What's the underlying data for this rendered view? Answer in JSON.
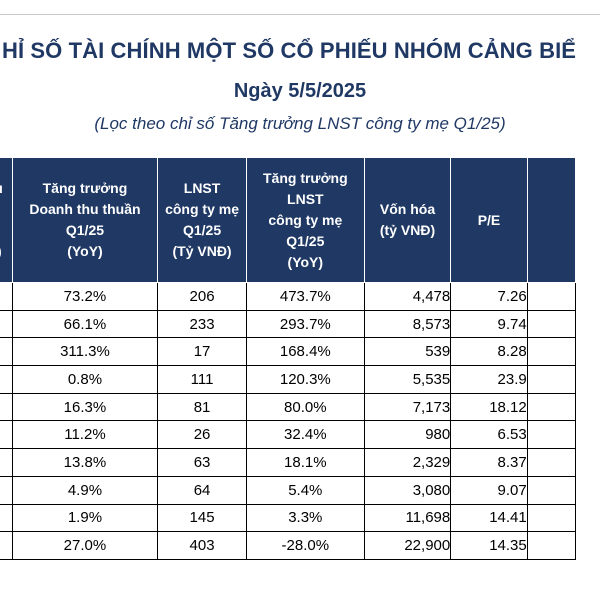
{
  "title": "HỈ SỐ TÀI CHÍNH MỘT SỐ CỔ PHIẾU NHÓM CẢNG BIỂ",
  "date": "Ngày 5/5/2025",
  "subtitle": "(Lọc theo chỉ số Tăng trưởng LNST công ty mẹ Q1/25)",
  "headers": {
    "col0": [
      "hu",
      "",
      "",
      "Đ)"
    ],
    "revenue_growth": [
      "Tăng trưởng",
      "Doanh thu thuần",
      "Q1/25",
      "(YoY)"
    ],
    "lnst": [
      "LNST",
      "công ty mẹ",
      "Q1/25",
      "(Tỷ VNĐ)"
    ],
    "lnst_growth": [
      "Tăng trưởng",
      "LNST",
      "công ty mẹ",
      "Q1/25",
      "(YoY)"
    ],
    "market_cap": [
      "Vốn hóa",
      "(tỷ VNĐ)"
    ],
    "pe": [
      "P/E"
    ]
  },
  "colors": {
    "header_bg": "#1f3864",
    "positive": "#00b050",
    "negative": "#ff0000"
  },
  "rows": [
    {
      "revenue_growth": "73.2%",
      "lnst": "206",
      "lnst_growth": "473.7%",
      "market_cap": "4,478",
      "pe": "7.26"
    },
    {
      "revenue_growth": "66.1%",
      "lnst": "233",
      "lnst_growth": "293.7%",
      "market_cap": "8,573",
      "pe": "9.74"
    },
    {
      "revenue_growth": "311.3%",
      "lnst": "17",
      "lnst_growth": "168.4%",
      "market_cap": "539",
      "pe": "8.28"
    },
    {
      "revenue_growth": "0.8%",
      "lnst": "111",
      "lnst_growth": "120.3%",
      "market_cap": "5,535",
      "pe": "23.9"
    },
    {
      "revenue_growth": "16.3%",
      "lnst": "81",
      "lnst_growth": "80.0%",
      "market_cap": "7,173",
      "pe": "18.12"
    },
    {
      "revenue_growth": "11.2%",
      "lnst": "26",
      "lnst_growth": "32.4%",
      "market_cap": "980",
      "pe": "6.53"
    },
    {
      "revenue_growth": "13.8%",
      "lnst": "63",
      "lnst_growth": "18.1%",
      "market_cap": "2,329",
      "pe": "8.37"
    },
    {
      "revenue_growth": "4.9%",
      "lnst": "64",
      "lnst_growth": "5.4%",
      "market_cap": "3,080",
      "pe": "9.07"
    },
    {
      "revenue_growth": "1.9%",
      "lnst": "145",
      "lnst_growth": "3.3%",
      "market_cap": "11,698",
      "pe": "14.41"
    },
    {
      "revenue_growth": "27.0%",
      "lnst": "403",
      "lnst_growth": "-28.0%",
      "market_cap": "22,900",
      "pe": "14.35"
    }
  ]
}
